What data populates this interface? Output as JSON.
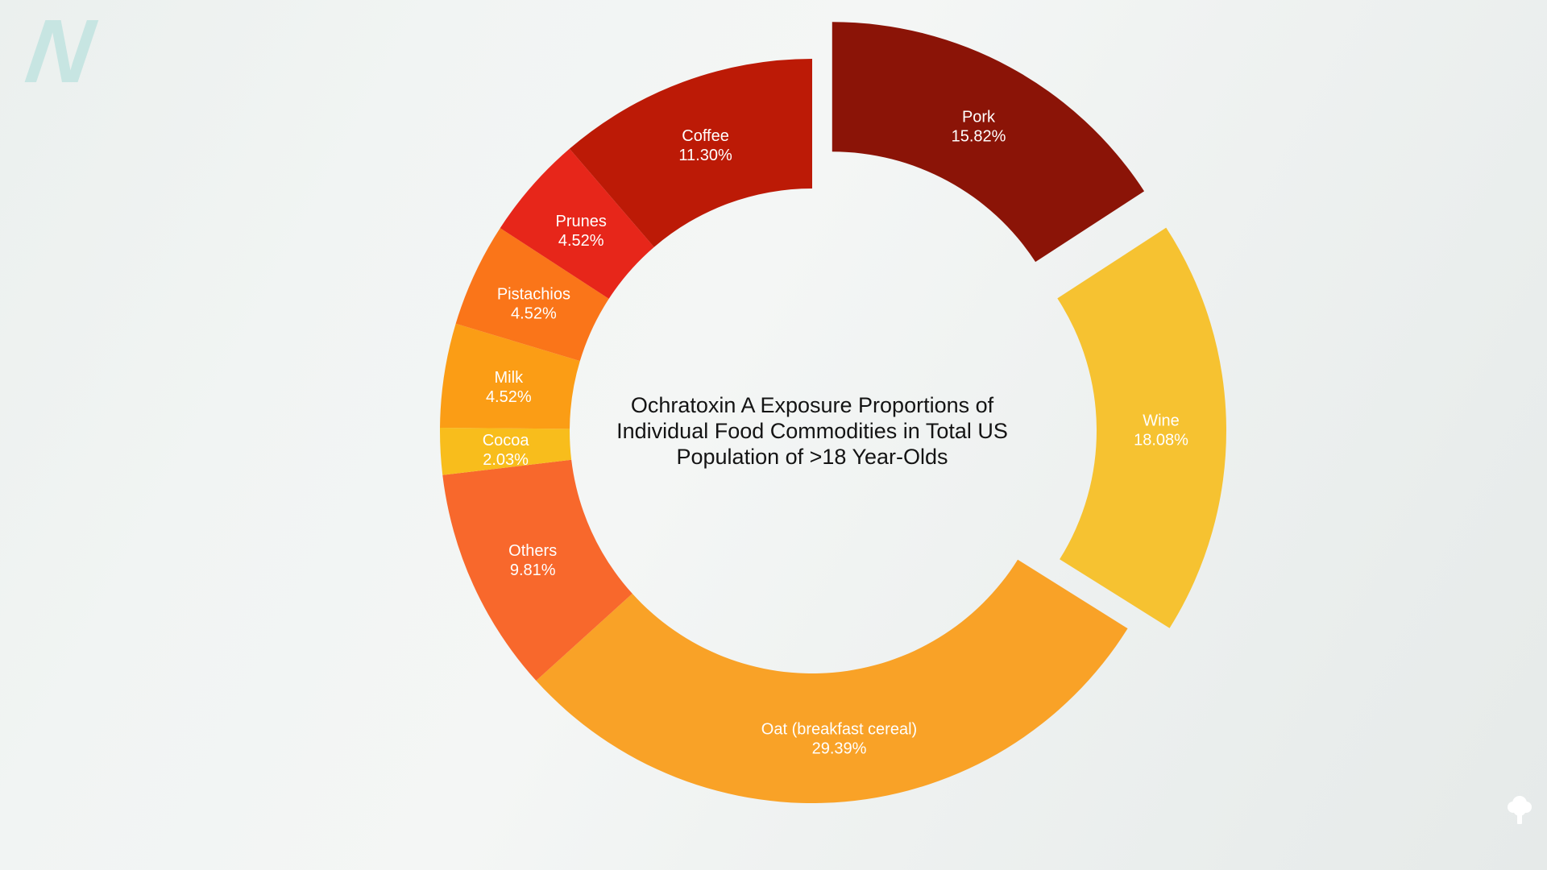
{
  "logo": {
    "letter": "N",
    "color": "#c7e5e2"
  },
  "watermark": {
    "icon": "tree-icon",
    "color": "#ffffff"
  },
  "chart_data": {
    "type": "pie",
    "subtype": "donut",
    "title": "Ochratoxin A Exposure Proportions of\nIndividual Food Commodities in Total US\nPopulation of >18 Year-Olds",
    "title_color": "#141414",
    "label_color": "#ffffff",
    "start_angle_deg": 0,
    "direction": "clockwise",
    "legend": "none",
    "grid": false,
    "segments": [
      {
        "name": "Pork",
        "value": 15.82,
        "label": "15.82%",
        "color": "#8b1407",
        "exploded": true
      },
      {
        "name": "Wine",
        "value": 18.08,
        "label": "18.08%",
        "color": "#f6c231",
        "exploded": true
      },
      {
        "name": "Oat (breakfast cereal)",
        "value": 29.39,
        "label": "29.39%",
        "color": "#f9a227",
        "exploded": false
      },
      {
        "name": "Others",
        "value": 9.81,
        "label": "9.81%",
        "color": "#f8682c",
        "exploded": false
      },
      {
        "name": "Cocoa",
        "value": 2.03,
        "label": "2.03%",
        "color": "#f8bd1c",
        "exploded": false
      },
      {
        "name": "Milk",
        "value": 4.52,
        "label": "4.52%",
        "color": "#fb9d15",
        "exploded": false
      },
      {
        "name": "Pistachios",
        "value": 4.52,
        "label": "4.52%",
        "color": "#fa7519",
        "exploded": false
      },
      {
        "name": "Prunes",
        "value": 4.52,
        "label": "4.52%",
        "color": "#e7261a",
        "exploded": false
      },
      {
        "name": "Coffee",
        "value": 11.3,
        "label": "11.30%",
        "color": "#bc1a06",
        "exploded": false
      }
    ]
  }
}
